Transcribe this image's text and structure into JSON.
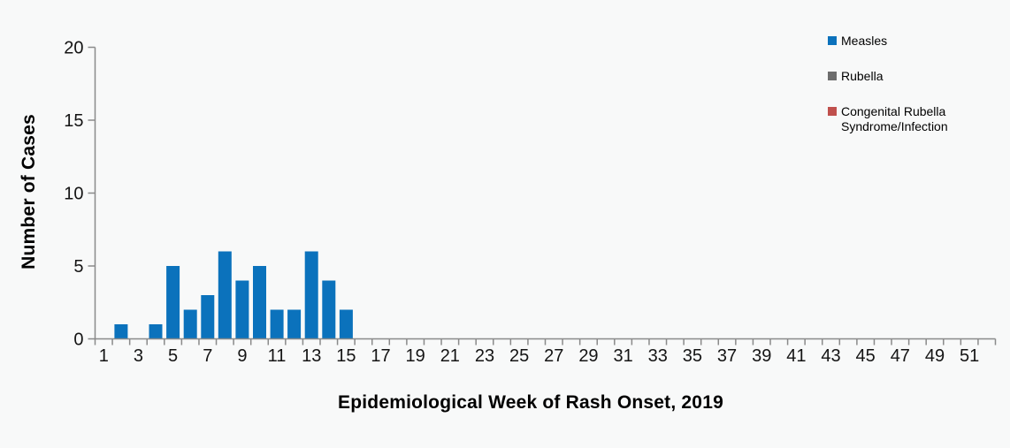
{
  "chart_data": {
    "type": "bar",
    "title": "",
    "xlabel": "Epidemiological Week of Rash Onset, 2019",
    "ylabel": "Number of Cases",
    "x_axis": {
      "range": [
        1,
        52
      ],
      "tick_labels": [
        1,
        3,
        5,
        7,
        9,
        11,
        13,
        15,
        17,
        19,
        21,
        23,
        25,
        27,
        29,
        31,
        33,
        35,
        37,
        39,
        41,
        43,
        45,
        47,
        49,
        51
      ],
      "tick_marks_every_week": true
    },
    "y_axis": {
      "ylim": [
        0,
        20
      ],
      "ticks": [
        0,
        5,
        10,
        15,
        20
      ]
    },
    "grid": false,
    "legend_position": "top-right",
    "series": [
      {
        "name": "Measles",
        "color": "#0b72bc",
        "values": [
          0,
          1,
          0,
          1,
          5,
          2,
          3,
          6,
          4,
          5,
          2,
          2,
          6,
          4,
          2,
          0,
          0,
          0,
          0,
          0,
          0,
          0,
          0,
          0,
          0,
          0,
          0,
          0,
          0,
          0,
          0,
          0,
          0,
          0,
          0,
          0,
          0,
          0,
          0,
          0,
          0,
          0,
          0,
          0,
          0,
          0,
          0,
          0,
          0,
          0,
          0,
          0
        ]
      },
      {
        "name": "Rubella",
        "color": "#6d6d6d",
        "values": [
          0,
          0,
          0,
          0,
          0,
          0,
          0,
          0,
          0,
          0,
          0,
          0,
          0,
          0,
          0,
          0,
          0,
          0,
          0,
          0,
          0,
          0,
          0,
          0,
          0,
          0,
          0,
          0,
          0,
          0,
          0,
          0,
          0,
          0,
          0,
          0,
          0,
          0,
          0,
          0,
          0,
          0,
          0,
          0,
          0,
          0,
          0,
          0,
          0,
          0,
          0,
          0
        ]
      },
      {
        "name": "Congenital Rubella Syndrome/Infection",
        "color": "#c0504d",
        "values": [
          0,
          0,
          0,
          0,
          0,
          0,
          0,
          0,
          0,
          0,
          0,
          0,
          0,
          0,
          0,
          0,
          0,
          0,
          0,
          0,
          0,
          0,
          0,
          0,
          0,
          0,
          0,
          0,
          0,
          0,
          0,
          0,
          0,
          0,
          0,
          0,
          0,
          0,
          0,
          0,
          0,
          0,
          0,
          0,
          0,
          0,
          0,
          0,
          0,
          0,
          0,
          0
        ]
      }
    ],
    "colors": {
      "axis": "#8a8a8a",
      "tick_text": "#141414",
      "background": "#f8f9f9"
    }
  }
}
